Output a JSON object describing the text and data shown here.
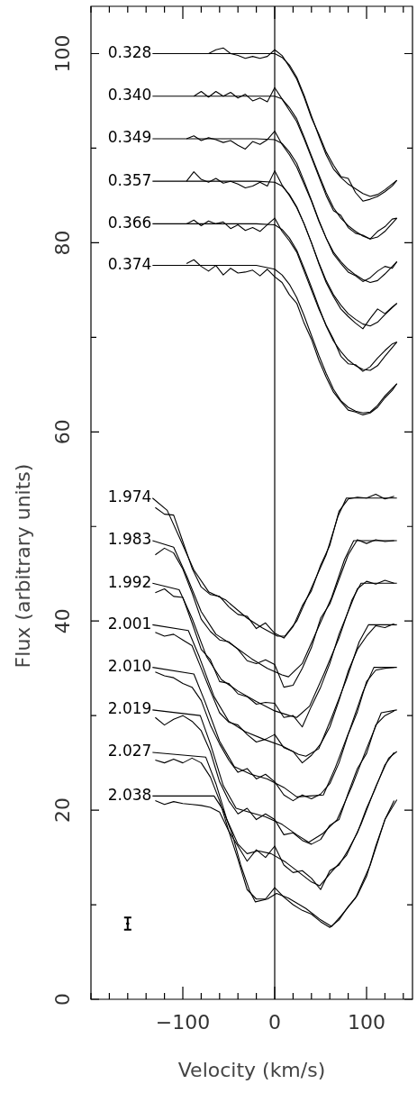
{
  "chart_data": {
    "type": "line",
    "xlabel": "Velocity (km/s)",
    "ylabel": "Flux (arbitrary units)",
    "xlim": [
      -200,
      150
    ],
    "ylim": [
      0,
      105
    ],
    "xticks": [
      {
        "value": -200,
        "label": null
      },
      {
        "value": -180,
        "label": null
      },
      {
        "value": -160,
        "label": null
      },
      {
        "value": -140,
        "label": null
      },
      {
        "value": -120,
        "label": null
      },
      -100,
      {
        "value": -80,
        "label": null
      },
      {
        "value": -60,
        "label": null
      },
      {
        "value": -40,
        "label": null
      },
      {
        "value": -20,
        "label": null
      },
      0,
      {
        "value": 20,
        "label": null
      },
      {
        "value": 40,
        "label": null
      },
      {
        "value": 60,
        "label": null
      },
      {
        "value": 80,
        "label": null
      },
      100,
      {
        "value": 120,
        "label": null
      },
      {
        "value": 140,
        "label": null
      }
    ],
    "yticks": [
      0,
      {
        "value": 10,
        "label": null
      },
      20,
      {
        "value": 30,
        "label": null
      },
      40,
      {
        "value": 50,
        "label": null
      },
      60,
      {
        "value": 70,
        "label": null
      },
      80,
      {
        "value": 90,
        "label": null
      },
      100
    ],
    "grid": false,
    "legend": false,
    "marker": "none",
    "line_style": "solid",
    "ref_lines": [
      {
        "axis": "x",
        "value": 0,
        "color": "#000000"
      }
    ],
    "series": [
      {
        "type": "line",
        "name": "0.328",
        "color": "#000000",
        "x": [
          -133,
          -20,
          0,
          8,
          16,
          24,
          32,
          40,
          48,
          56,
          64,
          72,
          80,
          88,
          96,
          104,
          112,
          120,
          133
        ],
        "values": [
          100,
          100,
          100,
          99.6,
          98.8,
          97.5,
          95.6,
          93.4,
          91.3,
          89.3,
          87.8,
          86.9,
          86.2,
          85.7,
          85.2,
          84.9,
          85.1,
          85.6,
          86.6
        ]
      },
      {
        "type": "line",
        "name": "0.340",
        "color": "#000000",
        "x": [
          -133,
          -20,
          0,
          8,
          16,
          24,
          32,
          40,
          48,
          56,
          64,
          72,
          80,
          88,
          96,
          104,
          112,
          120,
          133
        ],
        "values": [
          95.5,
          95.5,
          95.5,
          95.2,
          94.3,
          93.1,
          91.2,
          89.2,
          87.2,
          85.3,
          83.7,
          82.6,
          81.8,
          81.2,
          80.7,
          80.4,
          80.6,
          81.2,
          82.6
        ]
      },
      {
        "type": "line",
        "name": "0.349",
        "color": "#000000",
        "x": [
          -133,
          -20,
          0,
          8,
          16,
          24,
          32,
          40,
          48,
          56,
          64,
          72,
          80,
          88,
          96,
          104,
          112,
          120,
          133
        ],
        "values": [
          91,
          91,
          90.9,
          90.5,
          89.6,
          88.4,
          86.5,
          84.5,
          82.4,
          80.5,
          79.0,
          78.0,
          77.2,
          76.6,
          76.1,
          75.8,
          76.0,
          76.7,
          78.0
        ]
      },
      {
        "type": "line",
        "name": "0.357",
        "color": "#000000",
        "x": [
          -133,
          -20,
          0,
          8,
          16,
          24,
          32,
          40,
          48,
          56,
          64,
          72,
          80,
          88,
          96,
          104,
          112,
          120,
          133
        ],
        "values": [
          86.5,
          86.5,
          86.4,
          86.0,
          85.1,
          83.8,
          82.0,
          80.0,
          77.9,
          76.0,
          74.5,
          73.4,
          72.5,
          71.9,
          71.4,
          71.2,
          71.6,
          72.4,
          73.6
        ]
      },
      {
        "type": "line",
        "name": "0.366",
        "color": "#000000",
        "x": [
          -133,
          -20,
          0,
          8,
          16,
          24,
          32,
          40,
          48,
          56,
          64,
          72,
          80,
          88,
          96,
          104,
          112,
          120,
          133
        ],
        "values": [
          82,
          82,
          81.9,
          81.4,
          80.5,
          79.2,
          77.3,
          75.3,
          73.2,
          71.2,
          69.6,
          68.5,
          67.6,
          67.0,
          66.6,
          66.5,
          67.0,
          68.0,
          69.5
        ]
      },
      {
        "type": "line",
        "name": "0.374",
        "color": "#000000",
        "x": [
          -133,
          -20,
          0,
          8,
          16,
          24,
          32,
          40,
          48,
          56,
          64,
          72,
          80,
          88,
          96,
          104,
          112,
          120,
          133
        ],
        "values": [
          77.6,
          77.6,
          77.2,
          76.6,
          75.6,
          74.2,
          72.3,
          70.2,
          68.1,
          66.2,
          64.5,
          63.3,
          62.6,
          62.2,
          62.0,
          62.1,
          62.8,
          63.8,
          65.1
        ]
      },
      {
        "type": "line",
        "color": "#000000",
        "x": [
          -72,
          -64,
          -56,
          -48,
          -40,
          -32,
          -24,
          -16,
          -8,
          0,
          8,
          16,
          24,
          32,
          40,
          48,
          56,
          64,
          72,
          80,
          88,
          96,
          104,
          112,
          120,
          128,
          133
        ],
        "values": [
          100.0,
          100.4,
          100.6,
          100.0,
          99.8,
          99.5,
          99.7,
          99.5,
          99.7,
          100.4,
          99.8,
          98.6,
          97.3,
          95.4,
          93.2,
          91.5,
          89.6,
          88.2,
          87.0,
          86.8,
          85.3,
          84.4,
          84.6,
          84.9,
          85.4,
          86.0,
          86.6
        ]
      },
      {
        "type": "line",
        "color": "#000000",
        "x": [
          -88,
          -80,
          -72,
          -64,
          -56,
          -48,
          -40,
          -32,
          -24,
          -16,
          -8,
          0,
          8,
          16,
          24,
          32,
          40,
          48,
          56,
          64,
          72,
          80,
          88,
          96,
          104,
          112,
          120,
          128,
          133
        ],
        "values": [
          95.5,
          96.0,
          95.4,
          96.0,
          95.5,
          95.9,
          95.3,
          95.7,
          95.0,
          95.3,
          94.9,
          96.4,
          95.2,
          94.0,
          92.8,
          91.0,
          89.0,
          87.0,
          85.0,
          83.4,
          82.9,
          81.6,
          81.0,
          80.8,
          80.4,
          81.2,
          81.7,
          82.5,
          82.6
        ]
      },
      {
        "type": "line",
        "color": "#000000",
        "x": [
          -96,
          -88,
          -80,
          -72,
          -64,
          -56,
          -48,
          -40,
          -32,
          -24,
          -16,
          -8,
          0,
          8,
          16,
          24,
          32,
          40,
          48,
          56,
          64,
          72,
          80,
          88,
          96,
          104,
          112,
          120,
          128,
          133
        ],
        "values": [
          91.0,
          91.3,
          90.8,
          91.1,
          90.9,
          90.6,
          90.8,
          90.3,
          89.9,
          90.7,
          90.4,
          90.9,
          91.8,
          90.4,
          89.3,
          88.0,
          86.2,
          84.4,
          82.3,
          80.5,
          78.8,
          77.8,
          76.9,
          76.5,
          75.9,
          76.3,
          77.0,
          77.5,
          77.3,
          78.0
        ]
      },
      {
        "type": "line",
        "color": "#000000",
        "x": [
          -96,
          -88,
          -80,
          -72,
          -64,
          -56,
          -48,
          -40,
          -32,
          -24,
          -16,
          -8,
          0,
          8,
          16,
          24,
          32,
          40,
          48,
          56,
          64,
          72,
          80,
          88,
          96,
          104,
          112,
          120,
          128,
          133
        ],
        "values": [
          86.5,
          87.5,
          86.7,
          86.4,
          86.8,
          86.3,
          86.5,
          86.2,
          85.8,
          86.0,
          86.4,
          86.0,
          87.6,
          86.1,
          85.0,
          83.7,
          82.0,
          80.0,
          77.8,
          75.8,
          74.3,
          73.0,
          72.2,
          71.5,
          70.9,
          72.0,
          73.0,
          72.5,
          73.2,
          73.6
        ]
      },
      {
        "type": "line",
        "color": "#000000",
        "x": [
          -96,
          -88,
          -80,
          -72,
          -64,
          -56,
          -48,
          -40,
          -32,
          -24,
          -16,
          -8,
          0,
          8,
          16,
          24,
          32,
          40,
          48,
          56,
          64,
          72,
          80,
          88,
          96,
          104,
          112,
          120,
          128,
          133
        ],
        "values": [
          82.0,
          82.4,
          81.8,
          82.3,
          82.0,
          82.2,
          81.5,
          81.9,
          81.3,
          81.6,
          81.2,
          81.9,
          82.6,
          81.2,
          80.2,
          79.0,
          77.0,
          75.0,
          73.0,
          71.3,
          69.8,
          68.0,
          67.2,
          67.1,
          66.4,
          66.9,
          67.8,
          68.6,
          69.3,
          69.5
        ]
      },
      {
        "type": "line",
        "color": "#000000",
        "x": [
          -96,
          -88,
          -80,
          -72,
          -64,
          -56,
          -48,
          -40,
          -32,
          -24,
          -16,
          -8,
          0,
          8,
          16,
          24,
          32,
          40,
          48,
          56,
          64,
          72,
          80,
          88,
          96,
          104,
          112,
          120,
          128,
          133
        ],
        "values": [
          77.8,
          78.2,
          77.5,
          77.0,
          77.6,
          76.6,
          77.3,
          76.8,
          76.9,
          77.1,
          76.5,
          77.2,
          76.4,
          75.8,
          74.5,
          73.6,
          71.5,
          69.8,
          67.6,
          65.8,
          64.2,
          63.2,
          62.3,
          62.1,
          61.8,
          62.0,
          62.6,
          63.6,
          64.4,
          65.1
        ]
      },
      {
        "type": "line",
        "name": "1.974",
        "color": "#000000",
        "x": [
          -133,
          -117,
          -104,
          -88,
          -72,
          -53,
          -30,
          -14,
          3,
          11,
          24,
          40,
          56,
          69,
          78,
          133
        ],
        "values": [
          53.0,
          51.7,
          48.9,
          45.4,
          43.1,
          42.2,
          40.3,
          39.3,
          38.4,
          38.4,
          40.0,
          43.5,
          47.0,
          51.1,
          53.0,
          53.0
        ]
      },
      {
        "type": "line",
        "name": "1.983",
        "color": "#000000",
        "x": [
          -133,
          -110,
          -96,
          -80,
          -64,
          -45,
          -25,
          -8,
          8,
          15,
          30,
          46,
          62,
          76,
          86,
          133
        ],
        "values": [
          48.5,
          47.8,
          44.8,
          41.0,
          38.6,
          37.4,
          36.0,
          35.0,
          34.3,
          34.1,
          35.5,
          39.0,
          42.5,
          46.5,
          48.5,
          48.5
        ]
      },
      {
        "type": "line",
        "name": "1.992",
        "color": "#000000",
        "x": [
          -133,
          -104,
          -90,
          -74,
          -58,
          -40,
          -20,
          0,
          16,
          24,
          38,
          54,
          70,
          84,
          94,
          133
        ],
        "values": [
          44.0,
          43.3,
          40.3,
          36.2,
          33.8,
          32.6,
          31.5,
          30.5,
          30.0,
          29.8,
          31.0,
          34.5,
          38.2,
          42.2,
          44.0,
          44.0
        ]
      },
      {
        "type": "line",
        "name": "2.001",
        "color": "#000000",
        "x": [
          -133,
          -94,
          -82,
          -66,
          -50,
          -32,
          -12,
          8,
          26,
          34,
          48,
          62,
          78,
          92,
          102,
          133
        ],
        "values": [
          39.6,
          39.0,
          36.2,
          32.0,
          29.4,
          28.3,
          27.5,
          26.8,
          25.9,
          25.7,
          26.5,
          29.8,
          33.8,
          37.8,
          39.6,
          39.6
        ]
      },
      {
        "type": "line",
        "name": "2.010",
        "color": "#000000",
        "x": [
          -133,
          -88,
          -76,
          -60,
          -44,
          -26,
          -8,
          10,
          24,
          38,
          53,
          66,
          82,
          96,
          108,
          133
        ],
        "values": [
          35.1,
          34.4,
          31.5,
          27.3,
          24.6,
          23.8,
          23.3,
          22.4,
          21.4,
          21.5,
          21.6,
          24.5,
          28.6,
          32.5,
          35.1,
          35.1
        ]
      },
      {
        "type": "line",
        "name": "2.019",
        "color": "#000000",
        "x": [
          -133,
          -81,
          -70,
          -56,
          -42,
          -28,
          -10,
          8,
          24,
          37,
          52,
          68,
          84,
          100,
          116,
          133
        ],
        "values": [
          30.6,
          30.0,
          27.0,
          22.6,
          20.2,
          19.8,
          19.3,
          18.5,
          17.4,
          16.6,
          17.5,
          19.0,
          22.5,
          26.5,
          30.3,
          30.6
        ]
      },
      {
        "type": "line",
        "name": "2.027",
        "color": "#000000",
        "x": [
          -133,
          -75,
          -64,
          -52,
          -40,
          -30,
          -18,
          -4,
          12,
          28,
          40,
          49,
          62,
          78,
          94,
          110,
          124,
          133
        ],
        "values": [
          26.1,
          25.6,
          22.8,
          19.0,
          16.4,
          15.4,
          15.7,
          15.4,
          14.5,
          13.3,
          12.4,
          12.0,
          13.5,
          15.2,
          18.5,
          22.5,
          25.5,
          26.2
        ]
      },
      {
        "type": "line",
        "name": "2.038",
        "color": "#000000",
        "x": [
          -133,
          -66,
          -56,
          -46,
          -37,
          -27,
          -21,
          -8,
          2,
          15,
          34,
          50,
          62,
          72,
          88,
          104,
          120,
          133
        ],
        "values": [
          21.5,
          21.5,
          20.0,
          17.4,
          14.2,
          11.4,
          10.3,
          10.6,
          11.2,
          10.7,
          9.6,
          8.4,
          7.7,
          8.8,
          10.7,
          14.2,
          19.0,
          21.1
        ]
      },
      {
        "type": "line",
        "color": "#000000",
        "x": [
          -130,
          -120,
          -110,
          -100,
          -90,
          -80,
          -70,
          -60,
          -50,
          -40,
          -30,
          -20,
          -10,
          0,
          10,
          20,
          30,
          40,
          50,
          60,
          70,
          80,
          90,
          100,
          110,
          120,
          130
        ],
        "values": [
          52.0,
          51.3,
          51.2,
          48.4,
          45.6,
          43.6,
          42.8,
          42.6,
          41.5,
          40.7,
          40.5,
          39.2,
          39.8,
          38.7,
          38.2,
          39.4,
          41.6,
          43.2,
          45.9,
          48.0,
          51.6,
          52.9,
          53.1,
          53.0,
          53.4,
          52.9,
          53.2
        ]
      },
      {
        "type": "line",
        "color": "#000000",
        "x": [
          -130,
          -120,
          -110,
          -100,
          -90,
          -80,
          -70,
          -60,
          -50,
          -40,
          -30,
          -20,
          -10,
          0,
          10,
          20,
          30,
          40,
          50,
          60,
          70,
          80,
          90,
          100,
          110,
          120,
          130
        ],
        "values": [
          47.0,
          47.7,
          47.2,
          45.5,
          43.0,
          40.2,
          38.9,
          38.0,
          37.8,
          37.0,
          35.8,
          35.5,
          35.9,
          35.4,
          33.0,
          33.2,
          35.0,
          37.2,
          40.3,
          41.8,
          44.4,
          47.0,
          48.6,
          48.2,
          48.6,
          48.4,
          48.5
        ]
      },
      {
        "type": "line",
        "color": "#000000",
        "x": [
          -130,
          -120,
          -110,
          -100,
          -90,
          -80,
          -70,
          -60,
          -50,
          -40,
          -30,
          -20,
          -10,
          0,
          10,
          20,
          30,
          40,
          50,
          60,
          70,
          80,
          90,
          100,
          110,
          120,
          130
        ],
        "values": [
          43.0,
          43.4,
          42.6,
          42.5,
          39.8,
          37.0,
          35.9,
          33.6,
          33.4,
          32.3,
          32.0,
          31.2,
          31.4,
          31.3,
          29.8,
          30.0,
          28.8,
          31.0,
          33.0,
          35.5,
          38.6,
          41.0,
          43.4,
          44.2,
          43.9,
          44.3,
          44.0
        ]
      },
      {
        "type": "line",
        "color": "#000000",
        "x": [
          -130,
          -120,
          -110,
          -100,
          -90,
          -80,
          -70,
          -60,
          -50,
          -40,
          -30,
          -20,
          -10,
          0,
          10,
          20,
          30,
          40,
          50,
          60,
          70,
          80,
          90,
          100,
          110,
          120,
          130
        ],
        "values": [
          38.8,
          38.4,
          38.6,
          38.0,
          37.4,
          35.0,
          32.6,
          30.3,
          29.3,
          29.0,
          28.0,
          27.2,
          27.5,
          28.0,
          26.6,
          26.2,
          25.0,
          25.8,
          27.0,
          28.8,
          31.6,
          34.7,
          37.0,
          38.4,
          39.5,
          39.3,
          39.7
        ]
      },
      {
        "type": "line",
        "color": "#000000",
        "x": [
          -130,
          -120,
          -110,
          -100,
          -90,
          -80,
          -70,
          -60,
          -50,
          -40,
          -30,
          -20,
          -10,
          0,
          10,
          20,
          30,
          40,
          50,
          60,
          70,
          80,
          90,
          100,
          110,
          120,
          130
        ],
        "values": [
          34.6,
          34.2,
          34.0,
          33.4,
          33.0,
          31.6,
          29.0,
          27.0,
          25.3,
          24.0,
          24.4,
          23.3,
          23.8,
          23.0,
          21.6,
          21.0,
          21.6,
          21.2,
          21.7,
          22.8,
          25.0,
          28.0,
          30.4,
          33.6,
          34.8,
          35.0,
          35.1
        ]
      },
      {
        "type": "line",
        "color": "#000000",
        "x": [
          -130,
          -120,
          -110,
          -100,
          -90,
          -80,
          -70,
          -60,
          -50,
          -40,
          -30,
          -20,
          -10,
          0,
          10,
          20,
          30,
          40,
          50,
          60,
          70,
          80,
          90,
          100,
          110,
          120,
          130
        ],
        "values": [
          29.8,
          29.0,
          29.6,
          30.0,
          29.4,
          28.4,
          26.2,
          23.0,
          21.0,
          19.6,
          20.2,
          19.0,
          19.6,
          19.0,
          17.4,
          17.6,
          16.8,
          16.4,
          16.9,
          18.4,
          19.0,
          21.8,
          24.4,
          26.0,
          29.0,
          30.0,
          30.5
        ]
      },
      {
        "type": "line",
        "color": "#000000",
        "x": [
          -130,
          -120,
          -110,
          -100,
          -90,
          -80,
          -70,
          -60,
          -50,
          -40,
          -30,
          -20,
          -10,
          0,
          10,
          20,
          30,
          40,
          50,
          60,
          70,
          80,
          90,
          100,
          110,
          120,
          130
        ],
        "values": [
          25.3,
          25.0,
          25.4,
          25.0,
          25.5,
          25.0,
          23.5,
          21.0,
          17.8,
          16.2,
          14.6,
          15.8,
          15.0,
          16.2,
          14.2,
          13.4,
          13.6,
          12.8,
          11.6,
          13.6,
          14.2,
          15.8,
          17.6,
          20.2,
          22.4,
          24.8,
          26.1
        ]
      },
      {
        "type": "line",
        "color": "#000000",
        "x": [
          -130,
          -120,
          -110,
          -100,
          -90,
          -80,
          -70,
          -60,
          -50,
          -40,
          -30,
          -20,
          -10,
          0,
          10,
          20,
          30,
          40,
          50,
          60,
          70,
          80,
          90,
          100,
          110,
          120,
          130
        ],
        "values": [
          21.0,
          20.6,
          20.9,
          20.7,
          20.6,
          20.5,
          20.3,
          19.8,
          17.8,
          14.8,
          11.6,
          10.6,
          10.6,
          11.8,
          10.8,
          10.0,
          9.4,
          9.0,
          8.2,
          7.6,
          8.4,
          9.8,
          11.0,
          13.0,
          16.2,
          19.0,
          21.0
        ]
      },
      {
        "type": "scatter",
        "color": "#000000",
        "marker": "circle",
        "x": [
          -160
        ],
        "values": [
          8
        ],
        "errors": [
          0.65
        ]
      }
    ]
  }
}
